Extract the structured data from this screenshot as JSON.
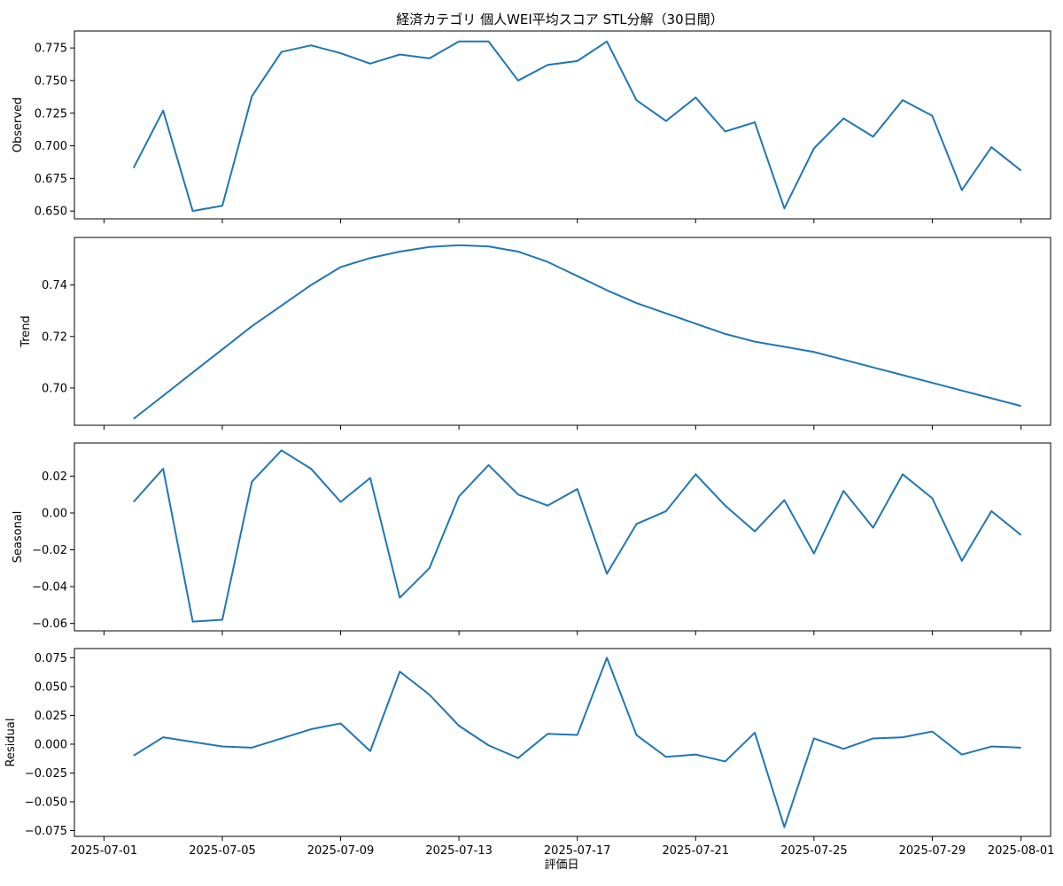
{
  "chart_data": {
    "type": "line",
    "title": "経済カテゴリ 個人WEI平均スコア STL分解（30日間）",
    "xlabel": "評価日",
    "color": "#1f77b4",
    "x": [
      "2025-07-02",
      "2025-07-03",
      "2025-07-04",
      "2025-07-05",
      "2025-07-06",
      "2025-07-07",
      "2025-07-08",
      "2025-07-09",
      "2025-07-10",
      "2025-07-11",
      "2025-07-12",
      "2025-07-13",
      "2025-07-14",
      "2025-07-15",
      "2025-07-16",
      "2025-07-17",
      "2025-07-18",
      "2025-07-19",
      "2025-07-20",
      "2025-07-21",
      "2025-07-22",
      "2025-07-23",
      "2025-07-24",
      "2025-07-25",
      "2025-07-26",
      "2025-07-27",
      "2025-07-28",
      "2025-07-29",
      "2025-07-30",
      "2025-07-31",
      "2025-08-01"
    ],
    "x_ticks": [
      "2025-07-01",
      "2025-07-05",
      "2025-07-09",
      "2025-07-13",
      "2025-07-17",
      "2025-07-21",
      "2025-07-25",
      "2025-07-29",
      "2025-08-01"
    ],
    "xlim": [
      "2025-06-30",
      "2025-08-02"
    ],
    "panels": [
      {
        "ylabel": "Observed",
        "ylim": [
          0.644,
          0.788
        ],
        "yticks": [
          0.65,
          0.675,
          0.7,
          0.725,
          0.75,
          0.775
        ],
        "ytick_labels": [
          "0.650",
          "0.675",
          "0.700",
          "0.725",
          "0.750",
          "0.775"
        ],
        "values": [
          0.683,
          0.727,
          0.65,
          0.654,
          0.738,
          0.772,
          0.777,
          0.771,
          0.763,
          0.77,
          0.767,
          0.78,
          0.78,
          0.75,
          0.762,
          0.765,
          0.78,
          0.735,
          0.719,
          0.737,
          0.711,
          0.718,
          0.652,
          0.698,
          0.721,
          0.707,
          0.735,
          0.723,
          0.666,
          0.699,
          0.681
        ]
      },
      {
        "ylabel": "Trend",
        "ylim": [
          0.6855,
          0.7585
        ],
        "yticks": [
          0.7,
          0.72,
          0.74
        ],
        "ytick_labels": [
          "0.70",
          "0.72",
          "0.74"
        ],
        "values": [
          0.688,
          0.697,
          0.706,
          0.715,
          0.724,
          0.732,
          0.74,
          0.747,
          0.7505,
          0.753,
          0.7548,
          0.7555,
          0.755,
          0.753,
          0.749,
          0.7435,
          0.738,
          0.733,
          0.729,
          0.725,
          0.721,
          0.718,
          0.716,
          0.714,
          0.711,
          0.708,
          0.705,
          0.702,
          0.699,
          0.696,
          0.693
        ]
      },
      {
        "ylabel": "Seasonal",
        "ylim": [
          -0.064,
          0.038
        ],
        "yticks": [
          -0.06,
          -0.04,
          -0.02,
          0.0,
          0.02
        ],
        "ytick_labels": [
          "−0.06",
          "−0.04",
          "−0.02",
          "0.00",
          "0.02"
        ],
        "values": [
          0.006,
          0.024,
          -0.059,
          -0.058,
          0.017,
          0.034,
          0.024,
          0.006,
          0.019,
          -0.046,
          -0.03,
          0.009,
          0.026,
          0.01,
          0.004,
          0.013,
          -0.033,
          -0.006,
          0.001,
          0.021,
          0.004,
          -0.01,
          0.007,
          -0.022,
          0.012,
          -0.008,
          0.021,
          0.008,
          -0.026,
          0.001,
          -0.012
        ]
      },
      {
        "ylabel": "Residual",
        "ylim": [
          -0.08,
          0.083
        ],
        "yticks": [
          -0.075,
          -0.05,
          -0.025,
          0.0,
          0.025,
          0.05,
          0.075
        ],
        "ytick_labels": [
          "−0.075",
          "−0.050",
          "−0.025",
          "0.000",
          "0.025",
          "0.050",
          "0.075"
        ],
        "values": [
          -0.01,
          0.006,
          0.002,
          -0.002,
          -0.003,
          0.005,
          0.013,
          0.018,
          -0.006,
          0.063,
          0.043,
          0.016,
          -0.001,
          -0.012,
          0.009,
          0.008,
          0.075,
          0.008,
          -0.011,
          -0.009,
          -0.015,
          0.01,
          -0.072,
          0.005,
          -0.004,
          0.005,
          0.006,
          0.011,
          -0.009,
          -0.002,
          -0.003
        ]
      }
    ]
  }
}
